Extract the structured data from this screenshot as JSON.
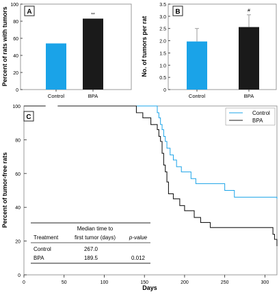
{
  "colors": {
    "control": "#1aa3e8",
    "bpa": "#1a1a1a",
    "frame": "#9a9a9a",
    "axis": "#222222"
  },
  "chart_data": [
    {
      "panel": "A",
      "type": "bar",
      "categories": [
        "Control",
        "BPA"
      ],
      "values": [
        54,
        83
      ],
      "ylabel": "Percent of rats with tumors",
      "ylim": [
        0,
        100
      ],
      "yticks": [
        0,
        20,
        40,
        60,
        80,
        100
      ],
      "annotations": [
        {
          "category": "BPA",
          "text": "**"
        }
      ],
      "grid": false
    },
    {
      "panel": "B",
      "type": "bar",
      "categories": [
        "Control",
        "BPA"
      ],
      "values": [
        1.97,
        2.56
      ],
      "errors": [
        0.53,
        0.5
      ],
      "ylabel": "No. of tumors per rat",
      "ylim": [
        0,
        3.5
      ],
      "yticks": [
        "0",
        "0.5",
        "1.0",
        "1.5",
        "2.0",
        "2.5",
        "3.0",
        "3.5"
      ],
      "annotations": [
        {
          "category": "BPA",
          "text": "#"
        }
      ],
      "grid": false
    },
    {
      "panel": "C",
      "type": "line",
      "step": true,
      "xlabel": "Days",
      "ylabel": "Percent of tumor-free rats",
      "xlim": [
        0,
        315
      ],
      "ylim": [
        0,
        100
      ],
      "xticks": [
        0,
        50,
        100,
        150,
        200,
        250,
        300
      ],
      "yticks": [
        0,
        20,
        40,
        60,
        80,
        100
      ],
      "axis_break": [
        27,
        42
      ],
      "legend_position": "top-right",
      "series": [
        {
          "name": "Control",
          "x": [
            0,
            162,
            166,
            168,
            170,
            172,
            174,
            176,
            178,
            182,
            186,
            190,
            196,
            202,
            208,
            214,
            220,
            226,
            246,
            248,
            250,
            254,
            262,
            268,
            276,
            315
          ],
          "y": [
            100,
            100,
            96,
            93,
            89,
            86,
            82,
            79,
            75,
            71,
            68,
            64,
            61,
            61,
            57,
            54,
            54,
            54,
            54,
            54,
            50,
            50,
            46,
            46,
            46,
            45
          ]
        },
        {
          "name": "BPA",
          "x": [
            0,
            132,
            140,
            148,
            158,
            164,
            166,
            168,
            170,
            172,
            174,
            176,
            178,
            180,
            186,
            194,
            200,
            212,
            220,
            226,
            232,
            244,
            246,
            252,
            272,
            308,
            310,
            312,
            315
          ],
          "y": [
            100,
            100,
            96,
            93,
            89,
            89,
            86,
            82,
            79,
            72,
            65,
            61,
            55,
            48,
            45,
            41,
            38,
            34,
            31,
            31,
            28,
            28,
            28,
            28,
            28,
            28,
            24,
            21,
            17
          ]
        }
      ],
      "table": {
        "headers": [
          "Treatment",
          "Median time to first tumor (days)",
          "p-value"
        ],
        "header_lines": {
          "treatment": "Treatment",
          "median_line1": "Median time to",
          "median_line2": "first tumor (days)",
          "pvalue": "p-value"
        },
        "rows": [
          {
            "treatment": "Control",
            "median": "267.0",
            "pvalue": ""
          },
          {
            "treatment": "BPA",
            "median": "189.5",
            "pvalue": "0.012"
          }
        ]
      }
    }
  ]
}
